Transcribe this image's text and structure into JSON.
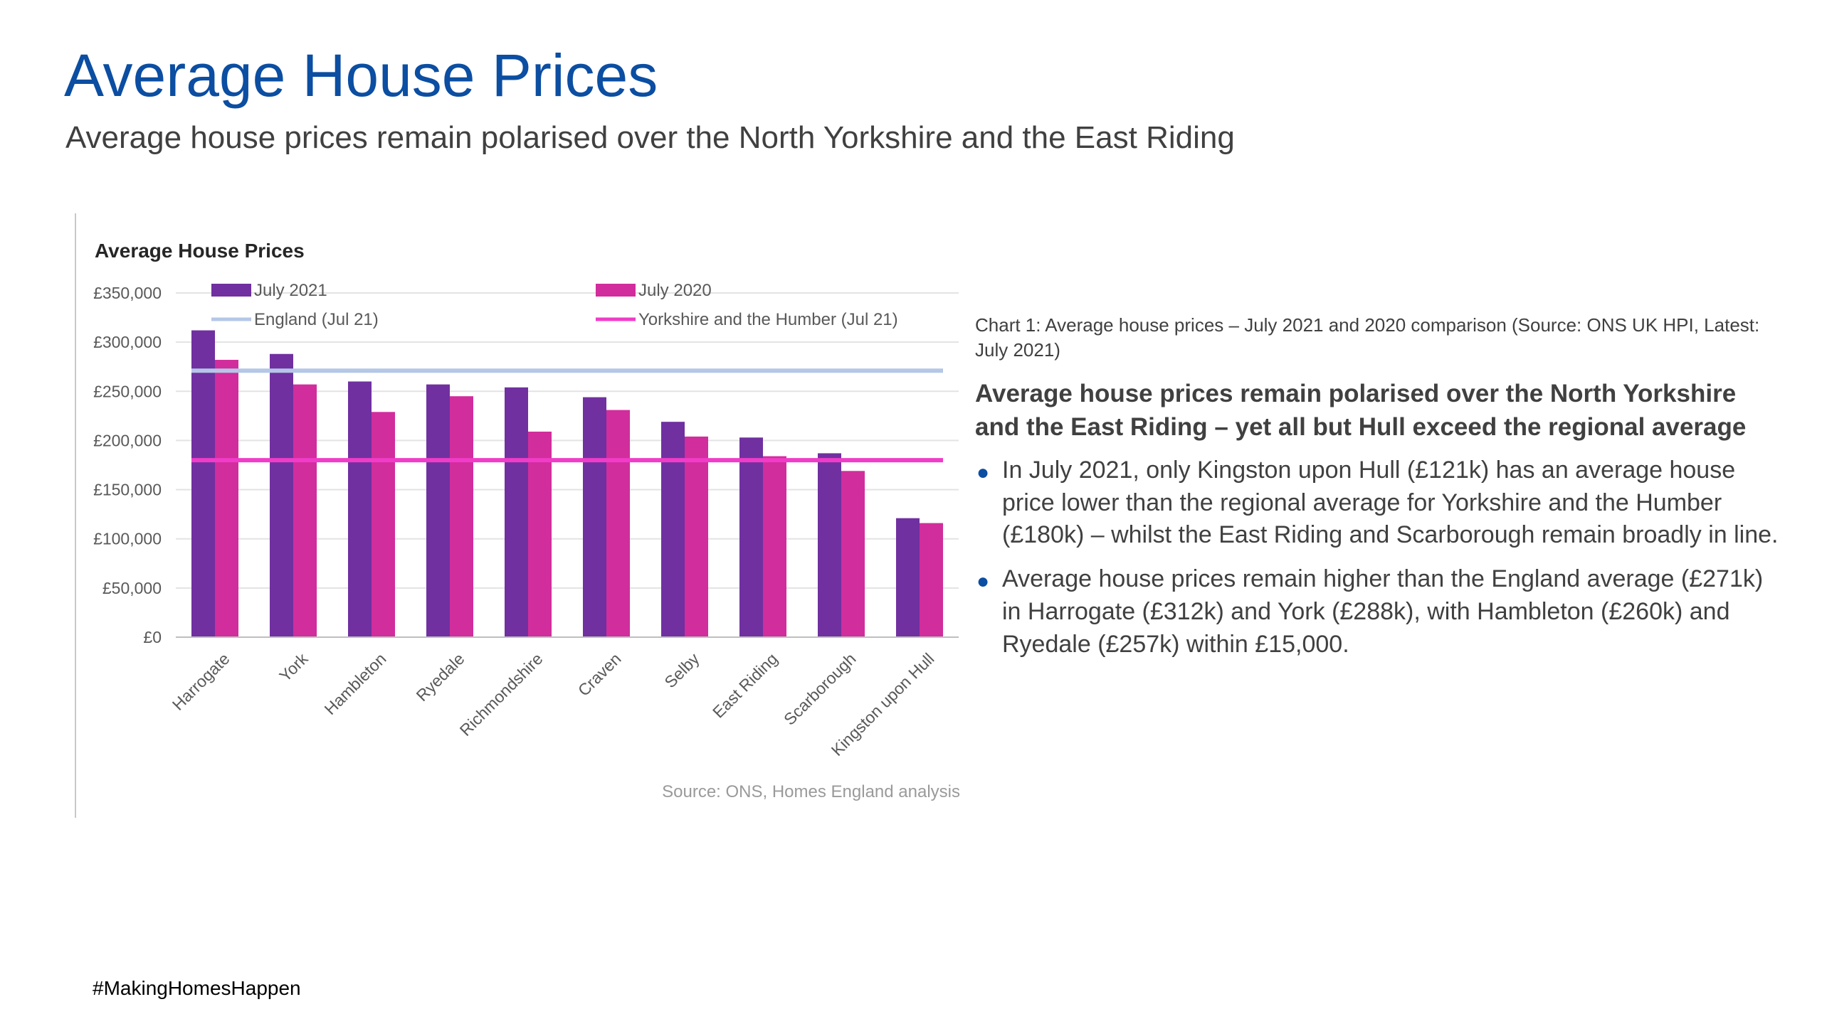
{
  "header": {
    "title": "Average House Prices",
    "subtitle": "Average house prices remain polarised over the North Yorkshire and the East Riding"
  },
  "chart_data": {
    "type": "bar",
    "title": "Average House Prices",
    "categories": [
      "Harrogate",
      "York",
      "Hambleton",
      "Ryedale",
      "Richmondshire",
      "Craven",
      "Selby",
      "East Riding",
      "Scarborough",
      "Kingston upon Hull"
    ],
    "series": [
      {
        "name": "July 2021",
        "color": "#7030a0",
        "values": [
          312000,
          288000,
          260000,
          257000,
          254000,
          244000,
          219000,
          203000,
          187000,
          121000
        ]
      },
      {
        "name": "July 2020",
        "color": "#d12d9c",
        "values": [
          282000,
          257000,
          229000,
          245000,
          209000,
          231000,
          204000,
          184000,
          169000,
          116000
        ]
      }
    ],
    "reference_lines": [
      {
        "name": "England (Jul 21)",
        "value": 271000,
        "color": "#b4c7e7"
      },
      {
        "name": "Yorkshire and the Humber (Jul 21)",
        "value": 180000,
        "color": "#f03cc8"
      }
    ],
    "y_ticks": [
      "£0",
      "£50,000",
      "£100,000",
      "£150,000",
      "£200,000",
      "£250,000",
      "£300,000",
      "£350,000"
    ],
    "ylim": [
      0,
      350000
    ],
    "grid": true,
    "legend_position": "top",
    "source": "Source: ONS, Homes England analysis"
  },
  "right_panel": {
    "caption": "Chart 1: Average house prices – July 2021 and 2020 comparison (Source: ONS UK HPI, Latest: July 2021)",
    "heading": "Average house prices remain polarised over the North Yorkshire and the East Riding – yet all but Hull exceed the regional average",
    "bullets": [
      "In July 2021, only Kingston upon Hull (£121k) has an average house price lower than the regional average for Yorkshire and the Humber (£180k) – whilst the East Riding and Scarborough remain broadly in line.",
      "Average house prices remain higher than the England average (£271k) in Harrogate (£312k) and York (£288k), with Hambleton (£260k) and Ryedale (£257k) within £15,000."
    ]
  },
  "footer": {
    "hashtag": "#MakingHomesHappen"
  }
}
